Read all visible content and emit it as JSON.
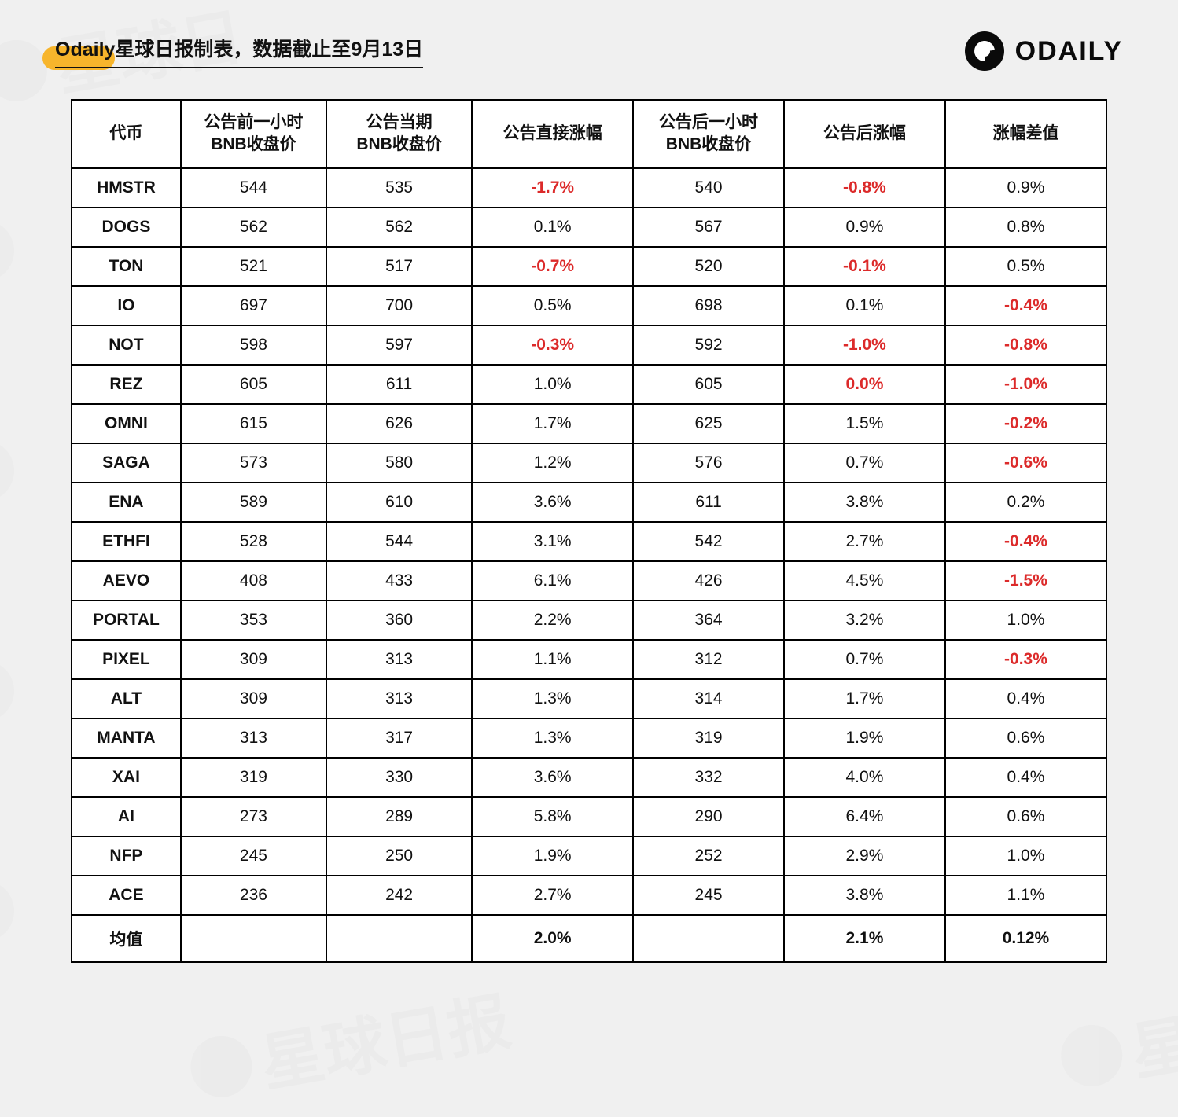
{
  "header": {
    "title": "Odaily星球日报制表，数据截止至9月13日",
    "brand": "ODAILY"
  },
  "table": {
    "type": "table",
    "background_color": "#ffffff",
    "border_color": "#000000",
    "text_color": "#111111",
    "negative_color": "#dc2a2a",
    "header_fontsize": 21,
    "cell_fontsize": 21,
    "column_widths_pct": [
      10.5,
      14,
      14,
      15.5,
      14.5,
      15.5,
      15.5
    ],
    "columns": [
      "代币",
      "公告前一小时\nBNB收盘价",
      "公告当期\nBNB收盘价",
      "公告直接涨幅",
      "公告后一小时\nBNB收盘价",
      "公告后涨幅",
      "涨幅差值"
    ],
    "rows": [
      {
        "token": "HMSTR",
        "pre": "544",
        "at": "535",
        "direct": "-1.7%",
        "post": "540",
        "post_pct": "-0.8%",
        "diff": "0.9%"
      },
      {
        "token": "DOGS",
        "pre": "562",
        "at": "562",
        "direct": "0.1%",
        "post": "567",
        "post_pct": "0.9%",
        "diff": "0.8%"
      },
      {
        "token": "TON",
        "pre": "521",
        "at": "517",
        "direct": "-0.7%",
        "post": "520",
        "post_pct": "-0.1%",
        "diff": "0.5%"
      },
      {
        "token": "IO",
        "pre": "697",
        "at": "700",
        "direct": "0.5%",
        "post": "698",
        "post_pct": "0.1%",
        "diff": "-0.4%"
      },
      {
        "token": "NOT",
        "pre": "598",
        "at": "597",
        "direct": "-0.3%",
        "post": "592",
        "post_pct": "-1.0%",
        "diff": "-0.8%"
      },
      {
        "token": "REZ",
        "pre": "605",
        "at": "611",
        "direct": "1.0%",
        "post": "605",
        "post_pct": "0.0%",
        "diff": "-1.0%"
      },
      {
        "token": "OMNI",
        "pre": "615",
        "at": "626",
        "direct": "1.7%",
        "post": "625",
        "post_pct": "1.5%",
        "diff": "-0.2%"
      },
      {
        "token": "SAGA",
        "pre": "573",
        "at": "580",
        "direct": "1.2%",
        "post": "576",
        "post_pct": "0.7%",
        "diff": "-0.6%"
      },
      {
        "token": "ENA",
        "pre": "589",
        "at": "610",
        "direct": "3.6%",
        "post": "611",
        "post_pct": "3.8%",
        "diff": "0.2%"
      },
      {
        "token": "ETHFI",
        "pre": "528",
        "at": "544",
        "direct": "3.1%",
        "post": "542",
        "post_pct": "2.7%",
        "diff": "-0.4%"
      },
      {
        "token": "AEVO",
        "pre": "408",
        "at": "433",
        "direct": "6.1%",
        "post": "426",
        "post_pct": "4.5%",
        "diff": "-1.5%"
      },
      {
        "token": "PORTAL",
        "pre": "353",
        "at": "360",
        "direct": "2.2%",
        "post": "364",
        "post_pct": "3.2%",
        "diff": "1.0%"
      },
      {
        "token": "PIXEL",
        "pre": "309",
        "at": "313",
        "direct": "1.1%",
        "post": "312",
        "post_pct": "0.7%",
        "diff": "-0.3%"
      },
      {
        "token": "ALT",
        "pre": "309",
        "at": "313",
        "direct": "1.3%",
        "post": "314",
        "post_pct": "1.7%",
        "diff": "0.4%"
      },
      {
        "token": "MANTA",
        "pre": "313",
        "at": "317",
        "direct": "1.3%",
        "post": "319",
        "post_pct": "1.9%",
        "diff": "0.6%"
      },
      {
        "token": "XAI",
        "pre": "319",
        "at": "330",
        "direct": "3.6%",
        "post": "332",
        "post_pct": "4.0%",
        "diff": "0.4%"
      },
      {
        "token": "AI",
        "pre": "273",
        "at": "289",
        "direct": "5.8%",
        "post": "290",
        "post_pct": "6.4%",
        "diff": "0.6%"
      },
      {
        "token": "NFP",
        "pre": "245",
        "at": "250",
        "direct": "1.9%",
        "post": "252",
        "post_pct": "2.9%",
        "diff": "1.0%"
      },
      {
        "token": "ACE",
        "pre": "236",
        "at": "242",
        "direct": "2.7%",
        "post": "245",
        "post_pct": "3.8%",
        "diff": "1.1%"
      }
    ],
    "avg_row": {
      "label": "均值",
      "direct": "2.0%",
      "post_pct": "2.1%",
      "diff": "0.12%"
    },
    "negative_cells": {
      "HMSTR": [
        "direct",
        "post_pct"
      ],
      "TON": [
        "direct",
        "post_pct"
      ],
      "IO": [
        "diff"
      ],
      "NOT": [
        "direct",
        "post_pct",
        "diff"
      ],
      "REZ": [
        "post_pct",
        "diff"
      ],
      "OMNI": [
        "diff"
      ],
      "SAGA": [
        "diff"
      ],
      "ETHFI": [
        "diff"
      ],
      "AEVO": [
        "diff"
      ],
      "PIXEL": [
        "diff"
      ]
    }
  },
  "styling": {
    "page_background": "#f0f0f0",
    "accent_color": "#f7b52c",
    "watermark_color": "#e4e4e4"
  }
}
